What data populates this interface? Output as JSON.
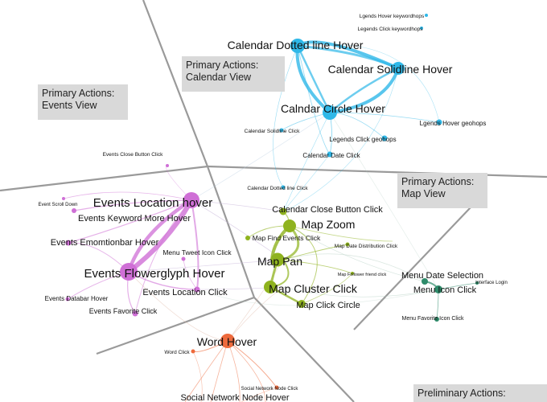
{
  "regions": {
    "calendar": {
      "line1": "Primary Actions:",
      "line2": "Calendar View"
    },
    "events": {
      "line1": "Primary Actions:",
      "line2": "Events View"
    },
    "map": {
      "line1": "Primary Actions:",
      "line2": "Map View"
    },
    "preliminary": {
      "line1": "Preliminary Actions:"
    }
  },
  "colors": {
    "calendar": "#2fb8e8",
    "events": "#cf6fd6",
    "map": "#8fb31e",
    "menu": "#2e8b6a",
    "word": "#ee6a3c",
    "divider": "#9a9a9a"
  },
  "nodes": {
    "n01": {
      "label": "Calendar Dotted line Hover",
      "group": "calendar"
    },
    "n02": {
      "label": "Calendar Solidline Hover",
      "group": "calendar"
    },
    "n03": {
      "label": "Calndar Circle Hover",
      "group": "calendar"
    },
    "n04": {
      "label": "Lgends Hover geohops",
      "group": "calendar"
    },
    "n05": {
      "label": "Legends Click geohops",
      "group": "calendar"
    },
    "n06": {
      "label": "Calendar Solidline Click",
      "group": "calendar"
    },
    "n07": {
      "label": "Calendar Date Click",
      "group": "calendar"
    },
    "n08": {
      "label": "Lgends Hover keywordhops",
      "group": "calendar"
    },
    "n09": {
      "label": "Legends Click keywordhops",
      "group": "calendar"
    },
    "n10": {
      "label": "Calendar Dotted line Click",
      "group": "calendar"
    },
    "n11": {
      "label": "Events Close Button Click",
      "group": "events"
    },
    "n12": {
      "label": "Event Scroll Down",
      "group": "events"
    },
    "n13": {
      "label": "Events Location hover",
      "group": "events"
    },
    "n14": {
      "label": "Events Keyword More Hover",
      "group": "events"
    },
    "n15": {
      "label": "Events Emomtionbar Hover",
      "group": "events"
    },
    "n16": {
      "label": "Events Flowerglyph Hover",
      "group": "events"
    },
    "n17": {
      "label": "Menu Tweet Icon Click",
      "group": "events"
    },
    "n18": {
      "label": "Events Location Click",
      "group": "events"
    },
    "n19": {
      "label": "Events Databar Hover",
      "group": "events"
    },
    "n20": {
      "label": "Events Favorite Click",
      "group": "events"
    },
    "n21": {
      "label": "Calendar Close Button Click",
      "group": "map"
    },
    "n22": {
      "label": "Map Zoom",
      "group": "map"
    },
    "n23": {
      "label": "Map Find Events Click",
      "group": "map"
    },
    "n24": {
      "label": "Map Date Distribution Click",
      "group": "map"
    },
    "n25": {
      "label": "Map Pan",
      "group": "map"
    },
    "n26": {
      "label": "Map Cluster Click",
      "group": "map"
    },
    "n27": {
      "label": "Map Click Circle",
      "group": "map"
    },
    "n28": {
      "label": "Map Follower friend click",
      "group": "map"
    },
    "n29": {
      "label": "Menu Date Selection",
      "group": "menu"
    },
    "n30": {
      "label": "Menu Icon Click",
      "group": "menu"
    },
    "n31": {
      "label": "Interface Login",
      "group": "menu"
    },
    "n32": {
      "label": "Menu Favorite Icon Click",
      "group": "menu"
    },
    "n33": {
      "label": "Word Hover",
      "group": "word"
    },
    "n34": {
      "label": "Word Click",
      "group": "word"
    },
    "n35": {
      "label": "Social Network Node Click",
      "group": "word"
    },
    "n36": {
      "label": "Social Network Node Hover",
      "group": "word"
    }
  }
}
